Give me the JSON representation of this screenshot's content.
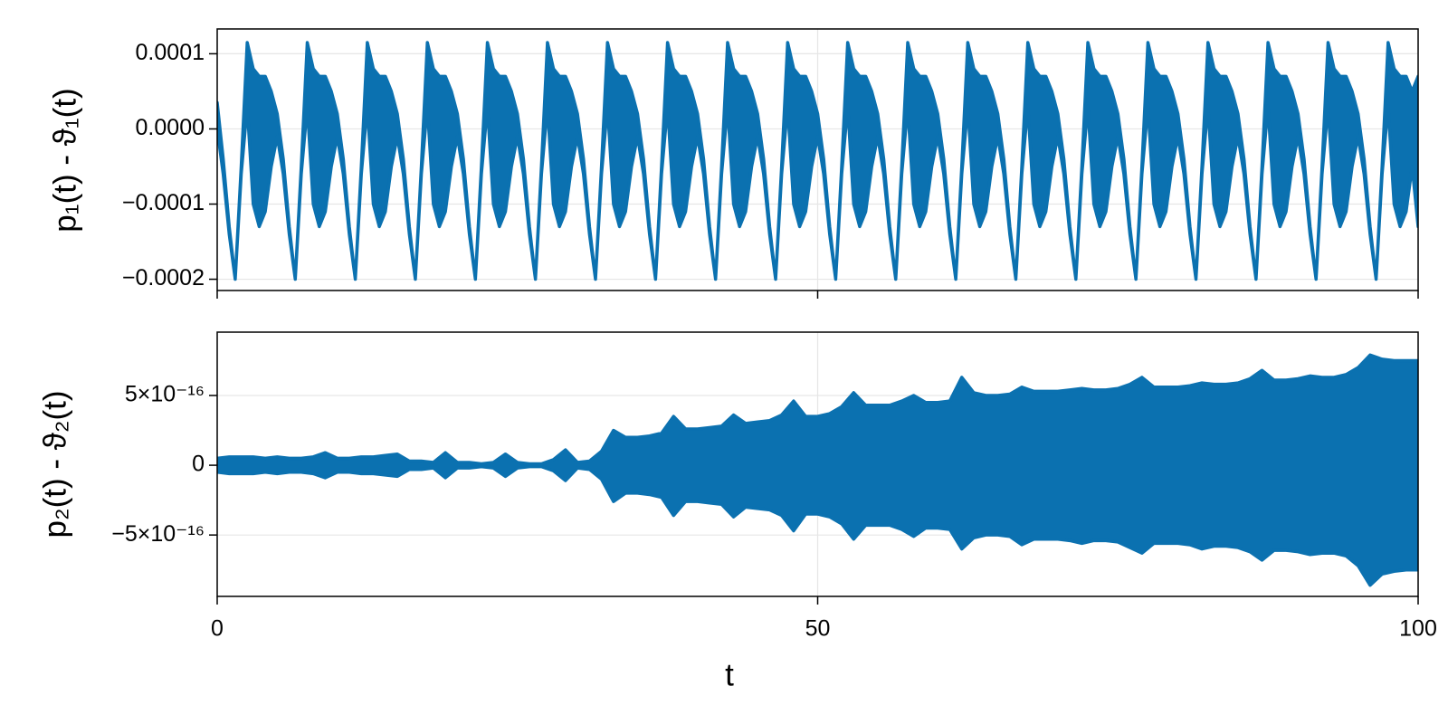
{
  "chart_data": [
    {
      "type": "band",
      "ylabel": "p₁(t) - ϑ₁(t)",
      "color": "#0b71b0",
      "grid": true,
      "xlim": [
        0,
        100
      ],
      "xticks": [
        0,
        50,
        100
      ],
      "xtick_labels": false,
      "ylim": [
        -0.000215,
        0.000133
      ],
      "yticks": [
        {
          "value": -0.0002,
          "label": "−0.0002"
        },
        {
          "value": -0.0001,
          "label": "−0.0001"
        },
        {
          "value": 0,
          "label": "0.0000"
        },
        0.0001
      ],
      "x": [
        0,
        0.5,
        1,
        1.5,
        2,
        2.5,
        3,
        3.5,
        4,
        4.5,
        5,
        5.5,
        6,
        6.5,
        7,
        7.5,
        8,
        8.5,
        9,
        9.5,
        10,
        10.5,
        11,
        11.5,
        12,
        12.5,
        13,
        13.5,
        14,
        14.5,
        15,
        15.5,
        16,
        16.5,
        17,
        17.5,
        18,
        18.5,
        19,
        19.5,
        20,
        20.5,
        21,
        21.5,
        22,
        22.5,
        23,
        23.5,
        24,
        24.5,
        25,
        25.5,
        26,
        26.5,
        27,
        27.5,
        28,
        28.5,
        29,
        29.5,
        30,
        30.5,
        31,
        31.5,
        32,
        32.5,
        33,
        33.5,
        34,
        34.5,
        35,
        35.5,
        36,
        36.5,
        37,
        37.5,
        38,
        38.5,
        39,
        39.5,
        40,
        40.5,
        41,
        41.5,
        42,
        42.5,
        43,
        43.5,
        44,
        44.5,
        45,
        45.5,
        46,
        46.5,
        47,
        47.5,
        48,
        48.5,
        49,
        49.5,
        50,
        50.5,
        51,
        51.5,
        52,
        52.5,
        53,
        53.5,
        54,
        54.5,
        55,
        55.5,
        56,
        56.5,
        57,
        57.5,
        58,
        58.5,
        59,
        59.5,
        60,
        60.5,
        61,
        61.5,
        62,
        62.5,
        63,
        63.5,
        64,
        64.5,
        65,
        65.5,
        66,
        66.5,
        67,
        67.5,
        68,
        68.5,
        69,
        69.5,
        70,
        70.5,
        71,
        71.5,
        72,
        72.5,
        73,
        73.5,
        74,
        74.5,
        75,
        75.5,
        76,
        76.5,
        77,
        77.5,
        78,
        78.5,
        79,
        79.5,
        80,
        80.5,
        81,
        81.5,
        82,
        82.5,
        83,
        83.5,
        84,
        84.5,
        85,
        85.5,
        86,
        86.5,
        87,
        87.5,
        88,
        88.5,
        89,
        89.5,
        90,
        90.5,
        91,
        91.5,
        92,
        92.5,
        93,
        93.5,
        94,
        94.5,
        95,
        95.5,
        96,
        96.5,
        97,
        97.5,
        98,
        98.5,
        99,
        99.5,
        100
      ],
      "upper": [
        3.5e-05,
        -4e-05,
        -0.00013,
        -0.0002,
        -5e-05,
        0.000115,
        8e-05,
        7e-05,
        7e-05,
        5e-05,
        2e-05,
        -4e-05,
        -0.00013,
        -0.0002,
        -5e-05,
        0.000115,
        8e-05,
        7e-05,
        7e-05,
        5e-05,
        2e-05,
        -4e-05,
        -0.00013,
        -0.0002,
        -5e-05,
        0.000115,
        8e-05,
        7e-05,
        7e-05,
        5e-05,
        2e-05,
        -4e-05,
        -0.00013,
        -0.0002,
        -5e-05,
        0.000115,
        8e-05,
        7e-05,
        7e-05,
        5e-05,
        2e-05,
        -4e-05,
        -0.00013,
        -0.0002,
        -5e-05,
        0.000115,
        8e-05,
        7e-05,
        7e-05,
        5e-05,
        2e-05,
        -4e-05,
        -0.00013,
        -0.0002,
        -5e-05,
        0.000115,
        8e-05,
        7e-05,
        7e-05,
        5e-05,
        2e-05,
        -4e-05,
        -0.00013,
        -0.0002,
        -5e-05,
        0.000115,
        8e-05,
        7e-05,
        7e-05,
        5e-05,
        2e-05,
        -4e-05,
        -0.00013,
        -0.0002,
        -5e-05,
        0.000115,
        8e-05,
        7e-05,
        7e-05,
        5e-05,
        2e-05,
        -4e-05,
        -0.00013,
        -0.0002,
        -5e-05,
        0.000115,
        8e-05,
        7e-05,
        7e-05,
        5e-05,
        2e-05,
        -4e-05,
        -0.00013,
        -0.0002,
        -5e-05,
        0.000115,
        8e-05,
        7e-05,
        7e-05,
        5e-05,
        2e-05,
        -4e-05,
        -0.00013,
        -0.0002,
        -5e-05,
        0.000115,
        8e-05,
        7e-05,
        7e-05,
        5e-05,
        2e-05,
        -4e-05,
        -0.00013,
        -0.0002,
        -5e-05,
        0.000115,
        8e-05,
        7e-05,
        7e-05,
        5e-05,
        2e-05,
        -4e-05,
        -0.00013,
        -0.0002,
        -5e-05,
        0.000115,
        8e-05,
        7e-05,
        7e-05,
        5e-05,
        2e-05,
        -4e-05,
        -0.00013,
        -0.0002,
        -5e-05,
        0.000115,
        8e-05,
        7e-05,
        7e-05,
        5e-05,
        2e-05,
        -4e-05,
        -0.00013,
        -0.0002,
        -5e-05,
        0.000115,
        8e-05,
        7e-05,
        7e-05,
        5e-05,
        2e-05,
        -4e-05,
        -0.00013,
        -0.0002,
        -5e-05,
        0.000115,
        8e-05,
        7e-05,
        7e-05,
        5e-05,
        2e-05,
        -4e-05,
        -0.00013,
        -0.0002,
        -5e-05,
        0.000115,
        8e-05,
        7e-05,
        7e-05,
        5e-05,
        2e-05,
        -4e-05,
        -0.00013,
        -0.0002,
        -5e-05,
        0.000115,
        8e-05,
        7e-05,
        7e-05,
        5e-05,
        2e-05,
        -4e-05,
        -0.00013,
        -0.0002,
        -5e-05,
        0.000115,
        8e-05,
        7e-05,
        7e-05,
        5e-05,
        2e-05,
        -4e-05,
        -0.00013,
        -0.0002,
        -5e-05,
        0.000115,
        8e-05,
        7e-05,
        7e-05,
        5e-05,
        7e-05
      ],
      "lower": [
        0,
        -6e-05,
        -0.00014,
        -0.0002,
        -6e-05,
        3e-05,
        -0.0001,
        -0.00013,
        -0.00011,
        -5e-05,
        -1e-05,
        -6e-05,
        -0.00014,
        -0.0002,
        -6e-05,
        3e-05,
        -0.0001,
        -0.00013,
        -0.00011,
        -5e-05,
        -1e-05,
        -6e-05,
        -0.00014,
        -0.0002,
        -6e-05,
        3e-05,
        -0.0001,
        -0.00013,
        -0.00011,
        -5e-05,
        -1e-05,
        -6e-05,
        -0.00014,
        -0.0002,
        -6e-05,
        3e-05,
        -0.0001,
        -0.00013,
        -0.00011,
        -5e-05,
        -1e-05,
        -6e-05,
        -0.00014,
        -0.0002,
        -6e-05,
        3e-05,
        -0.0001,
        -0.00013,
        -0.00011,
        -5e-05,
        -1e-05,
        -6e-05,
        -0.00014,
        -0.0002,
        -6e-05,
        3e-05,
        -0.0001,
        -0.00013,
        -0.00011,
        -5e-05,
        -1e-05,
        -6e-05,
        -0.00014,
        -0.0002,
        -6e-05,
        3e-05,
        -0.0001,
        -0.00013,
        -0.00011,
        -5e-05,
        -1e-05,
        -6e-05,
        -0.00014,
        -0.0002,
        -6e-05,
        3e-05,
        -0.0001,
        -0.00013,
        -0.00011,
        -5e-05,
        -1e-05,
        -6e-05,
        -0.00014,
        -0.0002,
        -6e-05,
        3e-05,
        -0.0001,
        -0.00013,
        -0.00011,
        -5e-05,
        -1e-05,
        -6e-05,
        -0.00014,
        -0.0002,
        -6e-05,
        3e-05,
        -0.0001,
        -0.00013,
        -0.00011,
        -5e-05,
        -1e-05,
        -6e-05,
        -0.00014,
        -0.0002,
        -6e-05,
        3e-05,
        -0.0001,
        -0.00013,
        -0.00011,
        -5e-05,
        -1e-05,
        -6e-05,
        -0.00014,
        -0.0002,
        -6e-05,
        3e-05,
        -0.0001,
        -0.00013,
        -0.00011,
        -5e-05,
        -1e-05,
        -6e-05,
        -0.00014,
        -0.0002,
        -6e-05,
        3e-05,
        -0.0001,
        -0.00013,
        -0.00011,
        -5e-05,
        -1e-05,
        -6e-05,
        -0.00014,
        -0.0002,
        -6e-05,
        3e-05,
        -0.0001,
        -0.00013,
        -0.00011,
        -5e-05,
        -1e-05,
        -6e-05,
        -0.00014,
        -0.0002,
        -6e-05,
        3e-05,
        -0.0001,
        -0.00013,
        -0.00011,
        -5e-05,
        -1e-05,
        -6e-05,
        -0.00014,
        -0.0002,
        -6e-05,
        3e-05,
        -0.0001,
        -0.00013,
        -0.00011,
        -5e-05,
        -1e-05,
        -6e-05,
        -0.00014,
        -0.0002,
        -6e-05,
        3e-05,
        -0.0001,
        -0.00013,
        -0.00011,
        -5e-05,
        -1e-05,
        -6e-05,
        -0.00014,
        -0.0002,
        -6e-05,
        3e-05,
        -0.0001,
        -0.00013,
        -0.00011,
        -5e-05,
        -1e-05,
        -6e-05,
        -0.00014,
        -0.0002,
        -6e-05,
        3e-05,
        -0.0001,
        -0.00013,
        -0.00011,
        -5e-05,
        -1e-05,
        -6e-05,
        -0.00014,
        -0.0002,
        -6e-05,
        3e-05,
        -0.0001,
        -0.00013,
        -0.00011,
        -5e-05,
        -0.00013
      ]
    },
    {
      "type": "band",
      "ylabel": "p₂(t) - ϑ₂(t)",
      "xlabel": "t",
      "color": "#0b71b0",
      "grid": true,
      "xlim": [
        0,
        100
      ],
      "xticks": [
        0,
        50,
        100
      ],
      "xtick_labels": true,
      "ylim": [
        -9.4e-16,
        9.54e-16
      ],
      "yticks": [
        {
          "value": -5e-16,
          "label": "−5×10⁻¹⁶"
        },
        0,
        {
          "value": 5e-16,
          "label": "5×10⁻¹⁶"
        }
      ],
      "x": [
        0,
        1,
        2,
        3,
        4,
        5,
        6,
        7,
        8,
        9,
        10,
        11,
        12,
        13,
        14,
        15,
        16,
        17,
        18,
        19,
        20,
        21,
        22,
        23,
        24,
        25,
        26,
        27,
        28,
        29,
        30,
        31,
        32,
        33,
        34,
        35,
        36,
        37,
        38,
        39,
        40,
        41,
        42,
        43,
        44,
        45,
        46,
        47,
        48,
        49,
        50,
        51,
        52,
        53,
        54,
        55,
        56,
        57,
        58,
        59,
        60,
        61,
        62,
        63,
        64,
        65,
        66,
        67,
        68,
        69,
        70,
        71,
        72,
        73,
        74,
        75,
        76,
        77,
        78,
        79,
        80,
        81,
        82,
        83,
        84,
        85,
        86,
        87,
        88,
        89,
        90,
        91,
        92,
        93,
        94,
        95,
        96,
        97,
        98,
        99,
        100
      ],
      "upper": [
        5e-17,
        6e-17,
        6e-17,
        6e-17,
        5e-17,
        6e-17,
        5e-17,
        5e-17,
        6e-17,
        9e-17,
        5e-17,
        5e-17,
        6e-17,
        6e-17,
        7e-17,
        8e-17,
        3e-17,
        3e-17,
        2e-17,
        9e-17,
        2e-17,
        2e-17,
        1e-17,
        2e-17,
        8e-17,
        2e-17,
        1e-17,
        1e-17,
        4e-17,
        1.1e-16,
        2e-17,
        3e-17,
        1e-16,
        2.5e-16,
        2e-16,
        2e-16,
        2.1e-16,
        2.3e-16,
        3.5e-16,
        2.6e-16,
        2.6e-16,
        2.7e-16,
        2.8e-16,
        3.6e-16,
        3e-16,
        3.1e-16,
        3.2e-16,
        3.6e-16,
        4.6e-16,
        3.5e-16,
        3.5e-16,
        3.7e-16,
        4.2e-16,
        5.2e-16,
        4.3e-16,
        4.3e-16,
        4.3e-16,
        4.6e-16,
        5e-16,
        4.5e-16,
        4.5e-16,
        4.6e-16,
        6.3e-16,
        5.2e-16,
        5e-16,
        5e-16,
        5.1e-16,
        5.6e-16,
        5.3e-16,
        5.3e-16,
        5.3e-16,
        5.4e-16,
        5.5e-16,
        5.4e-16,
        5.4e-16,
        5.5e-16,
        5.8e-16,
        6.3e-16,
        5.6e-16,
        5.6e-16,
        5.6e-16,
        5.7e-16,
        5.9e-16,
        5.8e-16,
        5.8e-16,
        5.9e-16,
        6.2e-16,
        6.8e-16,
        6.1e-16,
        6.1e-16,
        6.2e-16,
        6.4e-16,
        6.3e-16,
        6.3e-16,
        6.5e-16,
        7e-16,
        7.9e-16,
        7.6e-16,
        7.5e-16,
        7.5e-16,
        7.5e-16
      ],
      "lower": [
        -5e-17,
        -6e-17,
        -6e-17,
        -6e-17,
        -5e-17,
        -6e-17,
        -5e-17,
        -5e-17,
        -6e-17,
        -9e-17,
        -5e-17,
        -5e-17,
        -6e-17,
        -6e-17,
        -7e-17,
        -8e-17,
        -3e-17,
        -3e-17,
        -2e-17,
        -9e-17,
        -2e-17,
        -2e-17,
        -1e-17,
        -2e-17,
        -8e-17,
        -2e-17,
        -1e-17,
        -1e-17,
        -4e-17,
        -1.1e-16,
        -2e-17,
        -3e-17,
        -1e-16,
        -2.6e-16,
        -2e-16,
        -2e-16,
        -2.1e-16,
        -2.3e-16,
        -3.6e-16,
        -2.6e-16,
        -2.6e-16,
        -2.7e-16,
        -2.8e-16,
        -3.7e-16,
        -3e-16,
        -3.1e-16,
        -3.2e-16,
        -3.6e-16,
        -4.7e-16,
        -3.5e-16,
        -3.5e-16,
        -3.7e-16,
        -4.2e-16,
        -5.3e-16,
        -4.3e-16,
        -4.3e-16,
        -4.3e-16,
        -4.6e-16,
        -5.1e-16,
        -4.5e-16,
        -4.5e-16,
        -4.6e-16,
        -6e-16,
        -5.2e-16,
        -5e-16,
        -5e-16,
        -5.1e-16,
        -5.7e-16,
        -5.3e-16,
        -5.3e-16,
        -5.3e-16,
        -5.4e-16,
        -5.6e-16,
        -5.4e-16,
        -5.4e-16,
        -5.5e-16,
        -5.9e-16,
        -6.3e-16,
        -5.6e-16,
        -5.6e-16,
        -5.6e-16,
        -5.7e-16,
        -6e-16,
        -5.8e-16,
        -5.8e-16,
        -5.9e-16,
        -6.2e-16,
        -6.8e-16,
        -6.1e-16,
        -6.1e-16,
        -6.2e-16,
        -6.4e-16,
        -6.3e-16,
        -6.3e-16,
        -6.5e-16,
        -7.2e-16,
        -8.6e-16,
        -7.8e-16,
        -7.6e-16,
        -7.5e-16,
        -7.5e-16
      ]
    }
  ]
}
